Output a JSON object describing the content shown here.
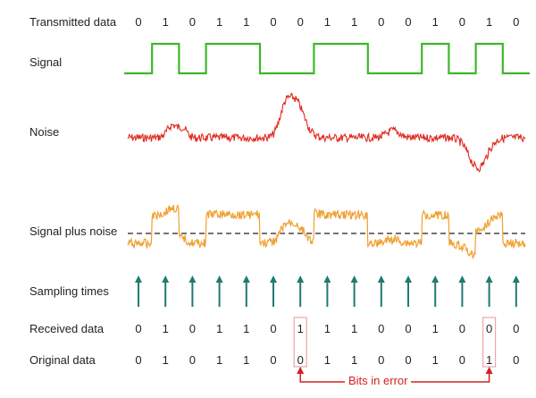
{
  "labels": {
    "transmitted": "Transmitted data",
    "signal": "Signal",
    "noise": "Noise",
    "signal_plus_noise": "Signal plus noise",
    "sampling_times": "Sampling times",
    "received": "Received data",
    "original": "Original data",
    "bits_in_error": "Bits in error"
  },
  "transmitted_bits": [
    "0",
    "1",
    "0",
    "1",
    "1",
    "0",
    "0",
    "1",
    "1",
    "0",
    "0",
    "1",
    "0",
    "1",
    "0"
  ],
  "received_bits": [
    "0",
    "1",
    "0",
    "1",
    "1",
    "0",
    "1",
    "1",
    "1",
    "0",
    "0",
    "1",
    "0",
    "0",
    "0"
  ],
  "original_bits": [
    "0",
    "1",
    "0",
    "1",
    "1",
    "0",
    "0",
    "1",
    "1",
    "0",
    "0",
    "1",
    "0",
    "1",
    "0"
  ],
  "error_bit_indices": [
    6,
    13
  ],
  "colors": {
    "signal": "#3cb828",
    "noise": "#e02a20",
    "signal_plus_noise": "#f0a030",
    "sampling_arrow": "#1f7a72",
    "error": "#d42020",
    "error_box": "#e8a8a8"
  }
}
